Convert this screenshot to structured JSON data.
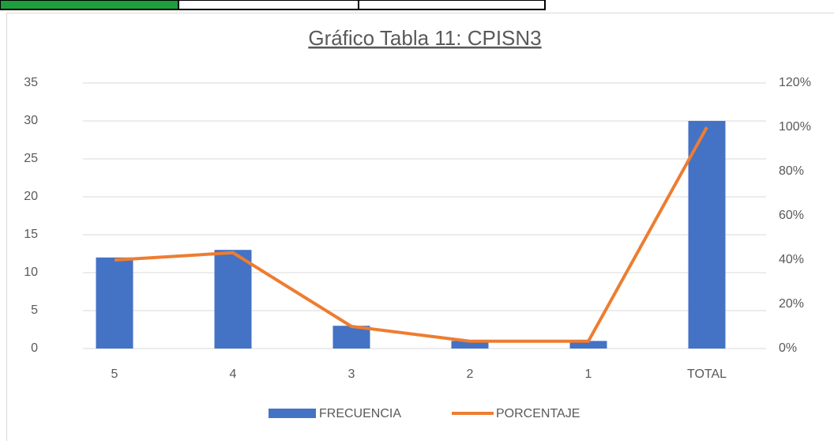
{
  "chart_data": {
    "type": "combo",
    "title": "Gráfico Tabla 11: CPISN3",
    "categories": [
      "5",
      "4",
      "3",
      "2",
      "1",
      "TOTAL"
    ],
    "series": [
      {
        "name": "FRECUENCIA",
        "type": "bar",
        "color": "#4472c4",
        "values": [
          12,
          13,
          3,
          1,
          1,
          30
        ]
      },
      {
        "name": "PORCENTAJE",
        "type": "line",
        "axis": "y2",
        "color": "#ed7d31",
        "values": [
          40,
          43.3,
          10,
          3.3,
          3.3,
          100
        ]
      }
    ],
    "ylim": [
      0,
      35
    ],
    "yticks": [
      0,
      5,
      10,
      15,
      20,
      25,
      30,
      35
    ],
    "y2lim": [
      0,
      120
    ],
    "y2ticks": [
      {
        "value": 0,
        "label": "0%"
      },
      {
        "value": 20,
        "label": "20%"
      },
      {
        "value": 40,
        "label": "40%"
      },
      {
        "value": 60,
        "label": "60%"
      },
      {
        "value": 80,
        "label": "80%"
      },
      {
        "value": 100,
        "label": "100%"
      },
      {
        "value": 120,
        "label": "120%"
      }
    ],
    "grid": true,
    "legend": "bottom"
  }
}
